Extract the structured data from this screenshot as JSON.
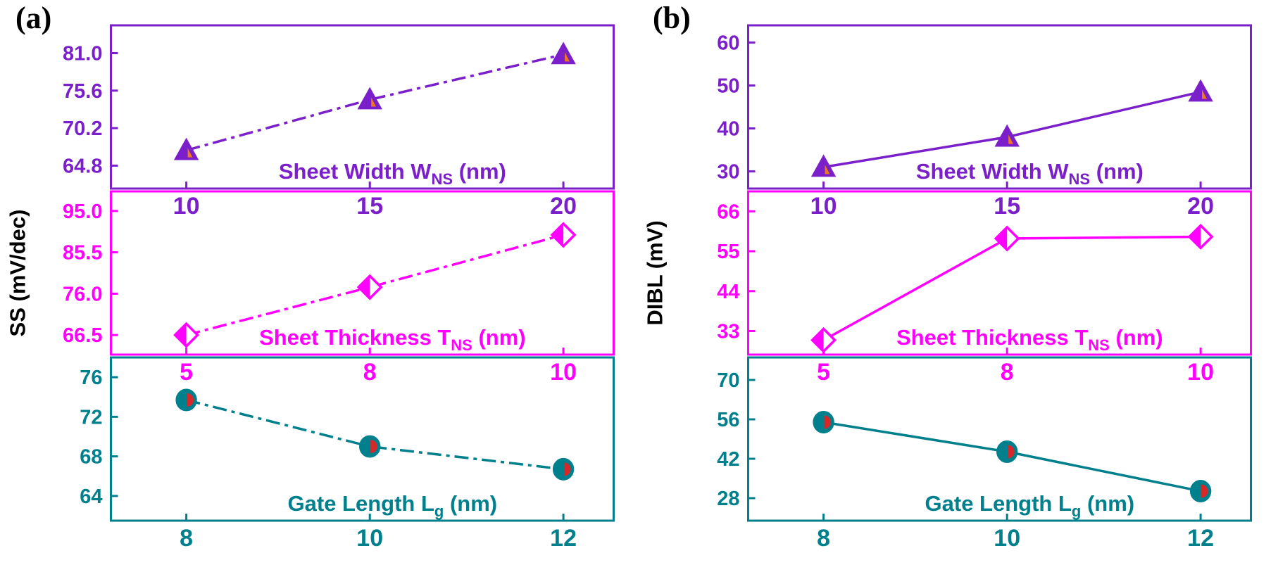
{
  "chart_data": {
    "type": "line",
    "panels": [
      {
        "label": "(a)",
        "ylabel": "SS (mV/dec)",
        "subplots": [
          {
            "title_pre": "Sheet Width W",
            "title_sub": "NS",
            "title_post": " (nm)",
            "color": "#7A1FC9",
            "marker": "triangle",
            "marker_accent": "#F07820",
            "line_dash": "dashdot",
            "x": [
              10,
              15,
              20
            ],
            "y": [
              67.0,
              74.3,
              80.8
            ],
            "yticks": [
              "64.8",
              "70.2",
              "75.6",
              "81.0"
            ],
            "ylim": [
              61.5,
              85.0
            ]
          },
          {
            "title_pre": "Sheet Thickness T",
            "title_sub": "NS",
            "title_post": " (nm)",
            "color": "#FF00FF",
            "marker": "diamond",
            "marker_accent": "#FFFFFF",
            "line_dash": "dashdot",
            "x": [
              5,
              8,
              10
            ],
            "y": [
              66.5,
              77.5,
              89.5
            ],
            "yticks": [
              "66.5",
              "76.0",
              "85.5",
              "95.0"
            ],
            "ylim": [
              62.0,
              99.5
            ]
          },
          {
            "title_pre": "Gate Length L",
            "title_sub": "g",
            "title_post": " (nm)",
            "color": "#00808C",
            "marker": "circle",
            "marker_accent": "#D62828",
            "line_dash": "dashdot",
            "x": [
              8,
              10,
              12
            ],
            "y": [
              73.7,
              69.0,
              66.7
            ],
            "yticks": [
              "64",
              "68",
              "72",
              "76"
            ],
            "ylim": [
              61.5,
              78.0
            ]
          }
        ]
      },
      {
        "label": "(b)",
        "ylabel": "DIBL (mV)",
        "subplots": [
          {
            "title_pre": "Sheet Width W",
            "title_sub": "NS",
            "title_post": " (nm)",
            "color": "#7A1FC9",
            "marker": "triangle",
            "marker_accent": "#F07820",
            "line_dash": "solid",
            "x": [
              10,
              15,
              20
            ],
            "y": [
              31.0,
              38.0,
              48.5
            ],
            "yticks": [
              "30",
              "40",
              "50",
              "60"
            ],
            "ylim": [
              26.0,
              64.0
            ]
          },
          {
            "title_pre": "Sheet Thickness T",
            "title_sub": "NS",
            "title_post": " (nm)",
            "color": "#FF00FF",
            "marker": "diamond",
            "marker_accent": "#FFFFFF",
            "line_dash": "solid",
            "x": [
              5,
              8,
              10
            ],
            "y": [
              30.5,
              58.5,
              59.0
            ],
            "yticks": [
              "33",
              "44",
              "55",
              "66"
            ],
            "ylim": [
              26.5,
              71.5
            ]
          },
          {
            "title_pre": "Gate Length L",
            "title_sub": "g",
            "title_post": " (nm)",
            "color": "#00808C",
            "marker": "circle",
            "marker_accent": "#D62828",
            "line_dash": "solid",
            "x": [
              8,
              10,
              12
            ],
            "y": [
              55.0,
              44.5,
              30.5
            ],
            "yticks": [
              "28",
              "42",
              "56",
              "70"
            ],
            "ylim": [
              20.0,
              78.0
            ]
          }
        ]
      }
    ]
  }
}
